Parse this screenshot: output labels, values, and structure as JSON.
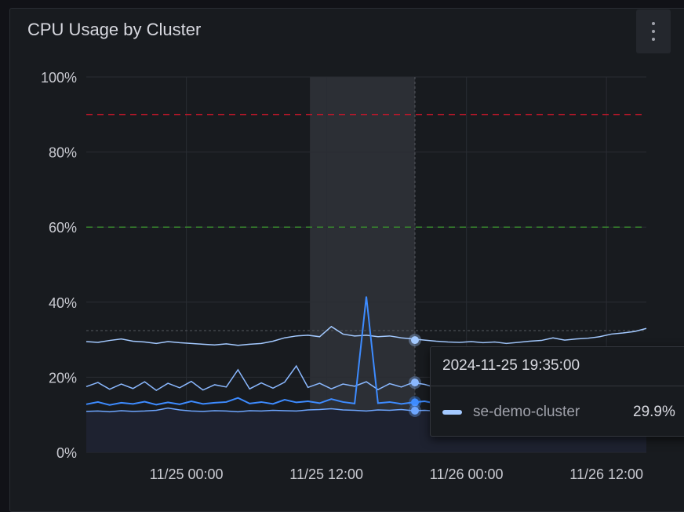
{
  "panel": {
    "title": "CPU Usage by Cluster",
    "menu_icon": "kebab-menu-icon"
  },
  "chart_data": {
    "type": "line",
    "title": "CPU Usage by Cluster",
    "xlabel": "",
    "ylabel": "",
    "x_start": "2024-11-24 15:25",
    "x_step_hours": 1,
    "xlim": [
      "2024-11-24 15:25",
      "2024-11-26 15:25"
    ],
    "ylim": [
      0,
      100
    ],
    "y_ticks": [
      "0%",
      "20%",
      "40%",
      "60%",
      "80%",
      "100%"
    ],
    "x_ticks": [
      {
        "label": "11/25 00:00",
        "time": "2024-11-25 00:00"
      },
      {
        "label": "11/25 12:00",
        "time": "2024-11-25 12:00"
      },
      {
        "label": "11/26 00:00",
        "time": "2024-11-26 00:00"
      },
      {
        "label": "11/26 12:00",
        "time": "2024-11-26 12:00"
      }
    ],
    "grid": true,
    "thresholds": [
      {
        "value": 90,
        "color": "#c4162a",
        "style": "dashed"
      },
      {
        "value": 60,
        "color": "#37872d",
        "style": "dashed"
      }
    ],
    "highlight_region": [
      "2024-11-25 10:35",
      "2024-11-25 19:35"
    ],
    "series": [
      {
        "name": "se-demo-cluster",
        "color": "#a3c9ff",
        "values": [
          29.5,
          29.3,
          29.8,
          30.2,
          29.6,
          29.4,
          29.0,
          29.5,
          29.2,
          29.0,
          28.8,
          28.6,
          28.9,
          28.5,
          28.8,
          29.0,
          29.6,
          30.5,
          31.0,
          31.2,
          30.8,
          33.5,
          31.5,
          31.0,
          31.2,
          30.8,
          31.0,
          30.5,
          30.2,
          29.9,
          29.6,
          29.4,
          29.3,
          29.5,
          29.2,
          29.4,
          29.0,
          29.3,
          29.6,
          29.8,
          30.5,
          29.9,
          30.2,
          30.4,
          30.8,
          31.5,
          31.8,
          32.2,
          33.0
        ]
      },
      {
        "color": "#8ab8ff",
        "values": [
          17.5,
          18.6,
          16.8,
          18.2,
          17.0,
          18.8,
          16.5,
          18.4,
          17.2,
          18.9,
          16.6,
          18.0,
          17.4,
          22.0,
          16.9,
          18.5,
          17.1,
          18.7,
          23.0,
          17.3,
          18.4,
          16.9,
          18.2,
          17.6,
          18.8,
          16.7,
          18.3,
          17.4,
          18.6,
          18.1,
          17.2,
          18.5,
          16.9,
          18.3,
          17.5,
          18.7,
          17.0,
          18.2,
          16.8,
          18.6,
          17.4,
          18.1,
          17.0,
          18.5,
          17.6,
          18.3,
          17.2,
          18.6,
          17.8
        ]
      },
      {
        "color": "#3d8bff",
        "values": [
          12.8,
          13.4,
          12.6,
          13.2,
          12.9,
          13.5,
          12.7,
          13.3,
          12.8,
          13.6,
          12.9,
          13.2,
          13.4,
          14.5,
          13.0,
          13.4,
          12.9,
          14.0,
          13.3,
          13.6,
          13.1,
          14.2,
          13.4,
          13.0,
          41.5,
          13.1,
          13.4,
          12.9,
          13.3,
          13.6,
          13.0,
          13.3,
          12.8,
          13.4,
          13.1,
          13.5,
          12.9,
          13.2,
          13.0,
          13.6,
          13.1,
          13.4,
          12.9,
          13.3,
          13.5,
          13.0,
          13.4,
          13.2,
          13.5
        ]
      },
      {
        "color": "#6ea6ff",
        "values": [
          10.9,
          11.0,
          10.8,
          11.1,
          10.9,
          11.0,
          11.2,
          11.8,
          11.3,
          11.0,
          10.9,
          11.1,
          11.0,
          10.8,
          11.1,
          11.0,
          11.2,
          11.1,
          11.0,
          11.3,
          11.4,
          11.6,
          11.3,
          11.2,
          11.0,
          11.3,
          11.2,
          11.4,
          11.1,
          11.2,
          11.0,
          11.1,
          11.3,
          11.0,
          11.2,
          11.1,
          11.4,
          11.0,
          11.2,
          11.1,
          11.3,
          11.0,
          11.2,
          11.4,
          11.1,
          11.3,
          11.0,
          11.2,
          11.1
        ]
      }
    ]
  },
  "tooltip": {
    "time": "2024-11-25 19:35:00",
    "series_name": "se-demo-cluster",
    "value": "29.9%",
    "swatch_color": "#a3c9ff"
  }
}
